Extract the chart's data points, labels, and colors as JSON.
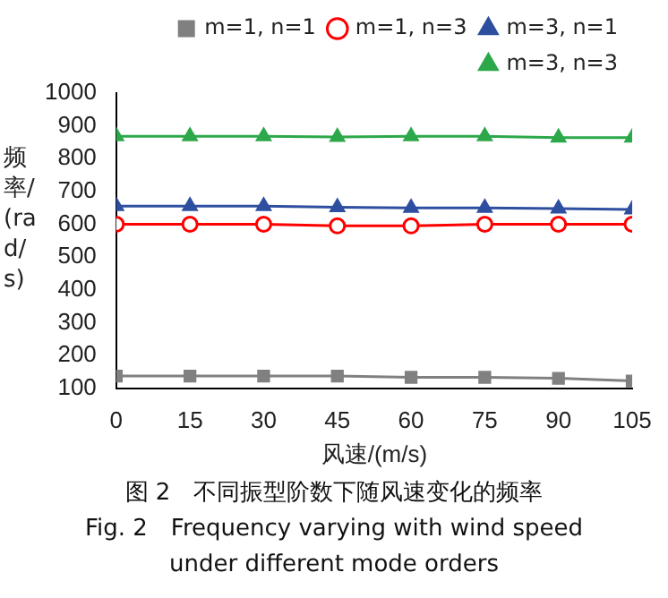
{
  "chart_data": {
    "type": "line",
    "xlabel": "风速/(m/s)",
    "ylabel": "频率/(rad/s)",
    "x": [
      0,
      15,
      30,
      45,
      60,
      75,
      90,
      105
    ],
    "xlim": [
      0,
      105
    ],
    "xticks": [
      0,
      15,
      30,
      45,
      60,
      75,
      90,
      105
    ],
    "ylim": [
      100,
      1000
    ],
    "yticks": [
      100,
      200,
      300,
      400,
      500,
      600,
      700,
      800,
      900,
      1000
    ],
    "grid": false,
    "legend": "top",
    "series": [
      {
        "name": "m=1, n=1",
        "color": "#808080",
        "marker": "square",
        "values": [
          137,
          137,
          137,
          137,
          133,
          133,
          130,
          122
        ]
      },
      {
        "name": "m=1, n=3",
        "color": "#ff0000",
        "marker": "circle",
        "values": [
          600,
          600,
          600,
          595,
          595,
          600,
          600,
          600
        ]
      },
      {
        "name": "m=3, n=1",
        "color": "#2e4fa0",
        "marker": "triangle",
        "values": [
          655,
          655,
          655,
          652,
          650,
          650,
          648,
          645
        ]
      },
      {
        "name": "m=3, n=3",
        "color": "#2ca84a",
        "marker": "triangle",
        "values": [
          868,
          868,
          868,
          866,
          868,
          868,
          864,
          864
        ]
      }
    ],
    "annotations": [
      "图 2　不同振型阶数下随风速变化的频率",
      "Fig. 2　Frequency varying with wind speed",
      "under different mode orders"
    ]
  }
}
